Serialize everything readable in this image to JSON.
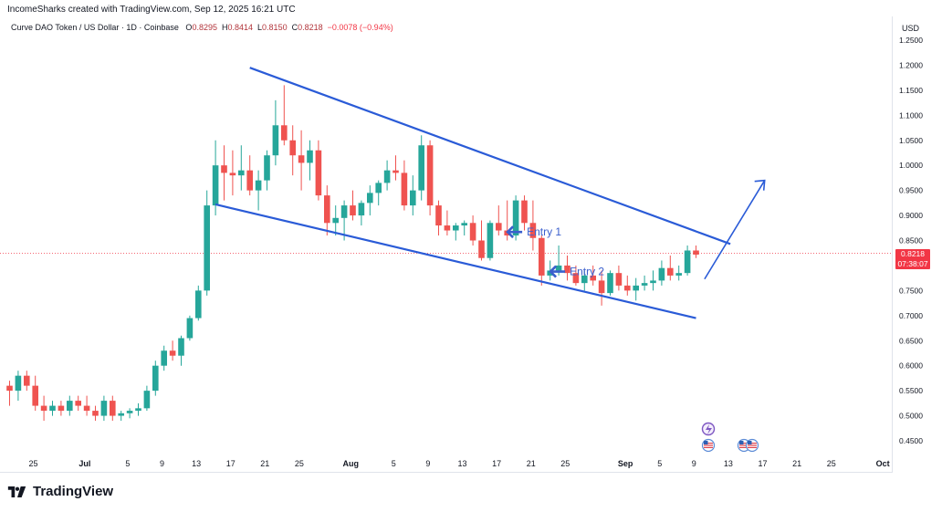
{
  "header": {
    "created": "IncomeSharks created with TradingView.com, Sep 12, 2025 16:21 UTC"
  },
  "legend": {
    "symbol": "Curve DAO Token / US Dollar · 1D · Coinbase",
    "o_label": "O",
    "o": "0.8295",
    "h_label": "H",
    "h": "0.8414",
    "l_label": "L",
    "l": "0.8150",
    "c_label": "C",
    "c": "0.8218",
    "change": "−0.0078 (−0.94%)"
  },
  "price_tag": {
    "price": "0.8218",
    "countdown": "07:38:07"
  },
  "annotations": {
    "entry1": "Entry 1",
    "entry2": "Entry 2"
  },
  "footer": {
    "brand": "TradingView"
  },
  "colors": {
    "up": "#26a69a",
    "down": "#ef5350",
    "line": "#2962ff",
    "accent": "#3a5fcd"
  },
  "chart_data": {
    "type": "candlestick",
    "currency": "USD",
    "y_axis_unit": "USD",
    "y_ticks": [
      "1.2500",
      "1.2000",
      "1.1500",
      "1.1000",
      "1.0500",
      "1.0000",
      "0.9500",
      "0.9000",
      "0.8500",
      "0.7500",
      "0.7000",
      "0.6500",
      "0.6000",
      "0.5500",
      "0.5000",
      "0.4500"
    ],
    "ylim": [
      0.43,
      1.27
    ],
    "x_ticks": [
      {
        "label": "25",
        "day": 0
      },
      {
        "label": "Jul",
        "day": 6
      },
      {
        "label": "5",
        "day": 11
      },
      {
        "label": "9",
        "day": 15
      },
      {
        "label": "13",
        "day": 19
      },
      {
        "label": "17",
        "day": 23
      },
      {
        "label": "21",
        "day": 27
      },
      {
        "label": "25",
        "day": 31
      },
      {
        "label": "Aug",
        "day": 37
      },
      {
        "label": "5",
        "day": 42
      },
      {
        "label": "9",
        "day": 46
      },
      {
        "label": "13",
        "day": 50
      },
      {
        "label": "17",
        "day": 54
      },
      {
        "label": "21",
        "day": 58
      },
      {
        "label": "25",
        "day": 62
      },
      {
        "label": "Sep",
        "day": 69
      },
      {
        "label": "5",
        "day": 73
      },
      {
        "label": "9",
        "day": 77
      },
      {
        "label": "13",
        "day": 81
      },
      {
        "label": "17",
        "day": 85
      },
      {
        "label": "21",
        "day": 89
      },
      {
        "label": "25",
        "day": 93
      },
      {
        "label": "Oct",
        "day": 99
      }
    ],
    "first_day": "Jun 25",
    "candles": [
      [
        0.56,
        0.57,
        0.52,
        0.55
      ],
      [
        0.55,
        0.59,
        0.53,
        0.58
      ],
      [
        0.58,
        0.59,
        0.55,
        0.56
      ],
      [
        0.56,
        0.58,
        0.51,
        0.52
      ],
      [
        0.52,
        0.54,
        0.49,
        0.51
      ],
      [
        0.51,
        0.53,
        0.5,
        0.52
      ],
      [
        0.52,
        0.53,
        0.5,
        0.51
      ],
      [
        0.51,
        0.54,
        0.5,
        0.53
      ],
      [
        0.53,
        0.54,
        0.51,
        0.52
      ],
      [
        0.52,
        0.54,
        0.5,
        0.51
      ],
      [
        0.51,
        0.52,
        0.49,
        0.5
      ],
      [
        0.5,
        0.54,
        0.49,
        0.53
      ],
      [
        0.53,
        0.54,
        0.49,
        0.5
      ],
      [
        0.5,
        0.51,
        0.49,
        0.505
      ],
      [
        0.505,
        0.515,
        0.495,
        0.51
      ],
      [
        0.51,
        0.525,
        0.5,
        0.515
      ],
      [
        0.515,
        0.56,
        0.51,
        0.55
      ],
      [
        0.55,
        0.61,
        0.54,
        0.6
      ],
      [
        0.6,
        0.64,
        0.59,
        0.63
      ],
      [
        0.63,
        0.65,
        0.61,
        0.62
      ],
      [
        0.62,
        0.66,
        0.6,
        0.655
      ],
      [
        0.655,
        0.7,
        0.65,
        0.695
      ],
      [
        0.695,
        0.76,
        0.69,
        0.75
      ],
      [
        0.75,
        0.95,
        0.74,
        0.92
      ],
      [
        0.92,
        1.05,
        0.9,
        1.0
      ],
      [
        1.0,
        1.04,
        0.93,
        0.985
      ],
      [
        0.985,
        1.03,
        0.94,
        0.98
      ],
      [
        0.98,
        1.04,
        0.95,
        0.99
      ],
      [
        0.99,
        1.02,
        0.94,
        0.95
      ],
      [
        0.95,
        0.99,
        0.91,
        0.97
      ],
      [
        0.97,
        1.03,
        0.95,
        1.02
      ],
      [
        1.02,
        1.13,
        1.0,
        1.08
      ],
      [
        1.08,
        1.16,
        1.04,
        1.05
      ],
      [
        1.05,
        1.08,
        0.98,
        1.02
      ],
      [
        1.02,
        1.07,
        0.95,
        1.005
      ],
      [
        1.005,
        1.05,
        0.97,
        1.03
      ],
      [
        1.03,
        1.05,
        0.93,
        0.94
      ],
      [
        0.94,
        0.96,
        0.86,
        0.885
      ],
      [
        0.885,
        0.92,
        0.86,
        0.895
      ],
      [
        0.895,
        0.93,
        0.85,
        0.92
      ],
      [
        0.92,
        0.95,
        0.89,
        0.9
      ],
      [
        0.9,
        0.93,
        0.88,
        0.925
      ],
      [
        0.925,
        0.96,
        0.9,
        0.945
      ],
      [
        0.945,
        0.97,
        0.92,
        0.965
      ],
      [
        0.965,
        1.01,
        0.95,
        0.99
      ],
      [
        0.99,
        1.02,
        0.97,
        0.985
      ],
      [
        0.985,
        1.01,
        0.91,
        0.92
      ],
      [
        0.92,
        0.98,
        0.9,
        0.95
      ],
      [
        0.95,
        1.06,
        0.93,
        1.04
      ],
      [
        1.04,
        1.05,
        0.9,
        0.92
      ],
      [
        0.92,
        0.93,
        0.86,
        0.88
      ],
      [
        0.88,
        0.91,
        0.86,
        0.87
      ],
      [
        0.87,
        0.885,
        0.85,
        0.88
      ],
      [
        0.88,
        0.89,
        0.86,
        0.885
      ],
      [
        0.885,
        0.9,
        0.84,
        0.85
      ],
      [
        0.85,
        0.89,
        0.81,
        0.815
      ],
      [
        0.815,
        0.89,
        0.81,
        0.885
      ],
      [
        0.885,
        0.92,
        0.86,
        0.87
      ],
      [
        0.87,
        0.93,
        0.85,
        0.86
      ],
      [
        0.86,
        0.94,
        0.85,
        0.93
      ],
      [
        0.93,
        0.94,
        0.87,
        0.885
      ],
      [
        0.885,
        0.93,
        0.83,
        0.855
      ],
      [
        0.855,
        0.86,
        0.76,
        0.78
      ],
      [
        0.78,
        0.81,
        0.77,
        0.79
      ],
      [
        0.79,
        0.84,
        0.78,
        0.8
      ],
      [
        0.8,
        0.82,
        0.77,
        0.785
      ],
      [
        0.785,
        0.8,
        0.76,
        0.765
      ],
      [
        0.765,
        0.79,
        0.75,
        0.78
      ],
      [
        0.78,
        0.8,
        0.76,
        0.77
      ],
      [
        0.77,
        0.79,
        0.72,
        0.745
      ],
      [
        0.745,
        0.79,
        0.74,
        0.785
      ],
      [
        0.785,
        0.8,
        0.75,
        0.76
      ],
      [
        0.76,
        0.78,
        0.74,
        0.75
      ],
      [
        0.75,
        0.775,
        0.73,
        0.76
      ],
      [
        0.76,
        0.78,
        0.75,
        0.765
      ],
      [
        0.765,
        0.79,
        0.75,
        0.77
      ],
      [
        0.77,
        0.81,
        0.76,
        0.795
      ],
      [
        0.795,
        0.82,
        0.77,
        0.78
      ],
      [
        0.78,
        0.8,
        0.77,
        0.785
      ],
      [
        0.785,
        0.84,
        0.78,
        0.83
      ],
      [
        0.83,
        0.84,
        0.815,
        0.8218
      ]
    ],
    "trendlines": [
      {
        "name": "upper",
        "from": [
          28,
          1.195
        ],
        "to": [
          84,
          0.843
        ]
      },
      {
        "name": "lower",
        "from": [
          24,
          0.922
        ],
        "to": [
          80,
          0.695
        ]
      }
    ],
    "projection_arrow": {
      "from": [
        81,
        0.773
      ],
      "to": [
        88,
        0.97
      ]
    },
    "entries": [
      {
        "label": "Entry 1",
        "day": 59,
        "price": 0.867
      },
      {
        "label": "Entry 2",
        "day": 64,
        "price": 0.788
      }
    ]
  }
}
